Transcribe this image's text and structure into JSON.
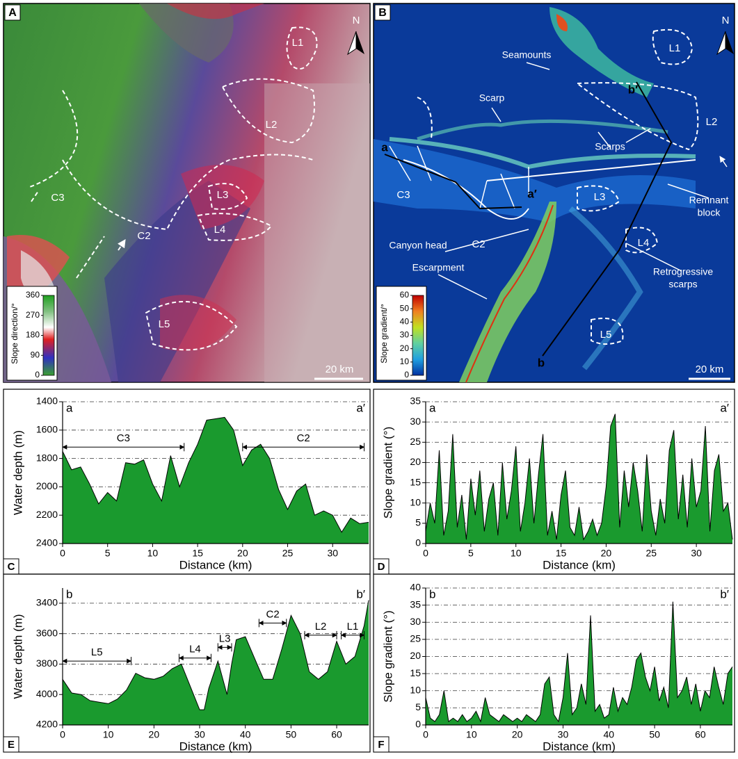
{
  "panel_a": {
    "letter": "A",
    "north": "N",
    "labels": [
      "L1",
      "L2",
      "L3",
      "L4",
      "L5",
      "C3",
      "C2"
    ],
    "colorbar": {
      "title": "Slope direction/°",
      "lim": [
        0,
        360
      ],
      "ticks": [
        0,
        90,
        180,
        270,
        360
      ]
    },
    "scale_bar": "20 km"
  },
  "panel_b": {
    "letter": "B",
    "north": "N",
    "labels": [
      "Seamounts",
      "Scarp",
      "Scarps",
      "L1",
      "L2",
      "L3",
      "L4",
      "L5",
      "b′",
      "b",
      "a",
      "a′",
      "C3",
      "C2",
      "Remnant",
      "block",
      "Canyon head",
      "Escarpment",
      "Retrogressive",
      "scarps"
    ],
    "colorbar": {
      "title": "Slope gradient/°",
      "lim": [
        0,
        60
      ],
      "ticks": [
        0,
        10,
        20,
        30,
        40,
        50,
        60
      ]
    },
    "scale_bar": "20 km"
  },
  "chart_data": [
    {
      "type": "area",
      "panel": "C",
      "corner_labels": [
        "a",
        "a′"
      ],
      "x_label": "Distance (km)",
      "y_label": "Water depth (m)",
      "y_inverted": true,
      "color": "#1a9a2e",
      "grid": true,
      "x": [
        0,
        1,
        2,
        3,
        4,
        5,
        6,
        7,
        8,
        9,
        10,
        11,
        12,
        13,
        14,
        15,
        16,
        17,
        18,
        19,
        20,
        21,
        22,
        23,
        24,
        25,
        26,
        27,
        28,
        29,
        30,
        31,
        32,
        33,
        34
      ],
      "values": [
        1750,
        1880,
        1860,
        1980,
        2120,
        2040,
        2100,
        1830,
        1840,
        1810,
        1980,
        2100,
        1780,
        2000,
        1830,
        1700,
        1530,
        1520,
        1510,
        1600,
        1850,
        1740,
        1700,
        1800,
        2020,
        2160,
        2030,
        1980,
        2200,
        2170,
        2200,
        2320,
        2220,
        2260,
        2250
      ],
      "xlim": [
        0,
        34
      ],
      "xticks": [
        0,
        5,
        10,
        15,
        20,
        25,
        30
      ],
      "ylim": [
        1400,
        2400
      ],
      "yticks": [
        1400,
        1600,
        1800,
        2000,
        2200,
        2400
      ],
      "annotations": [
        {
          "text": "C3",
          "span": [
            0,
            13.5
          ],
          "y": 1720
        },
        {
          "text": "C2",
          "span": [
            20,
            33.5
          ],
          "y": 1720
        }
      ]
    },
    {
      "type": "area",
      "panel": "D",
      "corner_labels": [
        "a",
        "a′"
      ],
      "x_label": "Distance (km)",
      "y_label": "Slope gradient (°)",
      "color": "#1a9a2e",
      "grid": true,
      "x": [
        0,
        0.5,
        1,
        1.5,
        2,
        2.5,
        3,
        3.5,
        4,
        4.5,
        5,
        5.5,
        6,
        6.5,
        7,
        7.5,
        8,
        8.5,
        9,
        9.5,
        10,
        10.5,
        11,
        11.5,
        12,
        12.5,
        13,
        13.5,
        14,
        14.5,
        15,
        15.5,
        16,
        16.5,
        17,
        17.5,
        18,
        18.5,
        19,
        19.5,
        20,
        20.5,
        21,
        21.5,
        22,
        22.5,
        23,
        23.5,
        24,
        24.5,
        25,
        25.5,
        26,
        26.5,
        27,
        27.5,
        28,
        28.5,
        29,
        29.5,
        30,
        30.5,
        31,
        31.5,
        32,
        32.5,
        33,
        33.5,
        34
      ],
      "values": [
        3,
        10,
        5,
        23,
        2,
        8,
        27,
        4,
        12,
        1,
        16,
        7,
        18,
        3,
        11,
        15,
        2,
        20,
        6,
        13,
        24,
        3,
        10,
        21,
        5,
        17,
        27,
        2,
        8,
        1,
        12,
        18,
        4,
        2,
        9,
        1,
        3,
        6,
        2,
        5,
        14,
        29,
        32,
        4,
        18,
        9,
        20,
        13,
        3,
        22,
        8,
        2,
        11,
        5,
        23,
        28,
        6,
        17,
        4,
        21,
        9,
        13,
        29,
        3,
        18,
        22,
        8,
        10,
        1
      ],
      "xlim": [
        0,
        34
      ],
      "xticks": [
        0,
        5,
        10,
        15,
        20,
        25,
        30
      ],
      "ylim": [
        0,
        35
      ],
      "yticks": [
        0,
        5,
        10,
        15,
        20,
        25,
        30,
        35
      ]
    },
    {
      "type": "area",
      "panel": "E",
      "corner_labels": [
        "b",
        "b′"
      ],
      "x_label": "Distance (km)",
      "y_label": "Water depth (m)",
      "y_inverted": true,
      "color": "#1a9a2e",
      "grid": true,
      "x": [
        0,
        2,
        4,
        6,
        8,
        10,
        12,
        14,
        16,
        18,
        20,
        22,
        24,
        26,
        28,
        30,
        31,
        32,
        34,
        36,
        37,
        38,
        40,
        42,
        44,
        46,
        48,
        50,
        52,
        54,
        56,
        58,
        60,
        62,
        64,
        66,
        67
      ],
      "values": [
        3900,
        3990,
        4000,
        4040,
        4050,
        4060,
        4030,
        3970,
        3860,
        3890,
        3900,
        3880,
        3830,
        3800,
        3950,
        4100,
        4100,
        3960,
        3780,
        4000,
        3800,
        3640,
        3620,
        3760,
        3900,
        3900,
        3700,
        3480,
        3600,
        3850,
        3900,
        3850,
        3650,
        3800,
        3750,
        3550,
        3380
      ],
      "xlim": [
        0,
        67
      ],
      "xticks": [
        0,
        10,
        20,
        30,
        40,
        50,
        60
      ],
      "ylim": [
        3300,
        4200
      ],
      "yticks": [
        3400,
        3600,
        3800,
        4000,
        4200
      ],
      "annotations": [
        {
          "text": "L5",
          "span": [
            0,
            15
          ],
          "y": 3780
        },
        {
          "text": "L4",
          "span": [
            25.5,
            32.5
          ],
          "y": 3760
        },
        {
          "text": "L3",
          "span": [
            34,
            37
          ],
          "y": 3690
        },
        {
          "text": "C2",
          "span": [
            43,
            49
          ],
          "y": 3530
        },
        {
          "text": "L2",
          "span": [
            53,
            60
          ],
          "y": 3610
        },
        {
          "text": "L1",
          "span": [
            61,
            66
          ],
          "y": 3610
        }
      ]
    },
    {
      "type": "area",
      "panel": "F",
      "corner_labels": [
        "b",
        "b′"
      ],
      "x_label": "Distance (km)",
      "y_label": "Slope gradient (°)",
      "color": "#1a9a2e",
      "grid": true,
      "x": [
        0,
        1,
        2,
        3,
        4,
        5,
        6,
        7,
        8,
        9,
        10,
        11,
        12,
        13,
        14,
        15,
        16,
        17,
        18,
        19,
        20,
        21,
        22,
        23,
        24,
        25,
        26,
        27,
        28,
        29,
        30,
        31,
        32,
        33,
        34,
        35,
        36,
        37,
        38,
        39,
        40,
        41,
        42,
        43,
        44,
        45,
        46,
        47,
        48,
        49,
        50,
        51,
        52,
        53,
        54,
        55,
        56,
        57,
        58,
        59,
        60,
        61,
        62,
        63,
        64,
        65,
        66,
        67
      ],
      "values": [
        8,
        2,
        1,
        3,
        10,
        1,
        2,
        1,
        3,
        1,
        2,
        4,
        1,
        8,
        3,
        2,
        1,
        3,
        2,
        1,
        2,
        1,
        3,
        2,
        1,
        3,
        12,
        14,
        3,
        1,
        8,
        21,
        3,
        5,
        12,
        6,
        32,
        4,
        6,
        2,
        3,
        11,
        4,
        8,
        6,
        11,
        19,
        21,
        14,
        10,
        17,
        7,
        11,
        5,
        36,
        8,
        10,
        14,
        6,
        12,
        4,
        10,
        8,
        17,
        11,
        6,
        15,
        17
      ],
      "xlim": [
        0,
        67
      ],
      "xticks": [
        0,
        10,
        20,
        30,
        40,
        50,
        60
      ],
      "ylim": [
        0,
        40
      ],
      "yticks": [
        0,
        5,
        10,
        15,
        20,
        25,
        30,
        35,
        40
      ]
    }
  ]
}
